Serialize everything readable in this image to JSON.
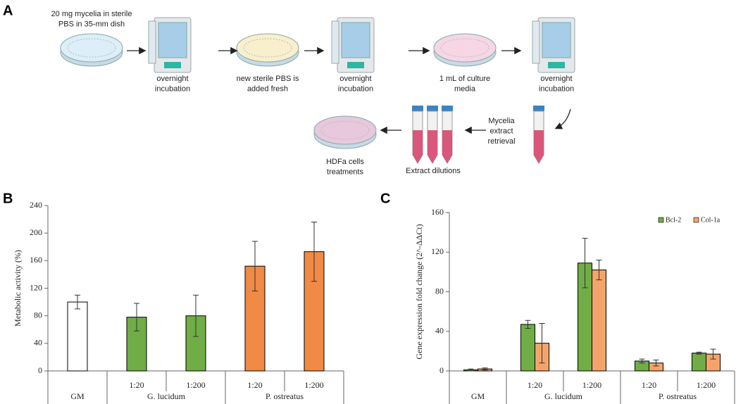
{
  "figure_a": {
    "label": "A",
    "steps": [
      [
        "20 mg mycelia in sterile",
        "PBS in 35-mm dish"
      ],
      [
        "overnight",
        "incubation"
      ],
      [
        "new sterile PBS is",
        "added fresh"
      ],
      [
        "overnight",
        "incubation"
      ],
      [
        "1 mL of culture",
        "media"
      ],
      [
        "overnight",
        "incubation"
      ],
      [
        "Mycelia",
        "extract",
        "retrieval"
      ],
      [
        "Extract dilutions"
      ],
      [
        "HDFa cells",
        "treatments"
      ]
    ]
  },
  "chart_data": [
    {
      "type": "bar",
      "label": "B",
      "ylabel": "Metabolic activity (%)",
      "ylim": [
        0,
        240
      ],
      "yticks": [
        0,
        40,
        80,
        120,
        160,
        200,
        240
      ],
      "groups": [
        {
          "label": "GM",
          "categories": [
            null
          ]
        },
        {
          "label": "G. lucidum",
          "categories": [
            "1:20",
            "1:200"
          ]
        },
        {
          "label": "P. ostreatus",
          "categories": [
            "1:20",
            "1:200"
          ]
        }
      ],
      "series": [
        {
          "values": [
            100,
            78,
            80,
            152,
            173
          ],
          "errors": [
            10,
            20,
            30,
            36,
            43
          ],
          "colors": [
            "#ffffff",
            "#70ad47",
            "#70ad47",
            "#f08a44",
            "#f08a44"
          ]
        }
      ]
    },
    {
      "type": "bar",
      "label": "C",
      "ylabel": "Gene expression fold change (2^-ΔΔCt)",
      "ylim": [
        0,
        160
      ],
      "yticks": [
        0,
        40,
        80,
        120,
        160
      ],
      "groups": [
        {
          "label": "GM",
          "categories": [
            null
          ]
        },
        {
          "label": "G. lucidum",
          "categories": [
            "1:20",
            "1:200"
          ]
        },
        {
          "label": "P. ostreatus",
          "categories": [
            "1:20",
            "1:200"
          ]
        }
      ],
      "series": [
        {
          "name": "Bcl-2",
          "color": "#70ad47",
          "values": [
            1,
            47,
            109,
            10,
            18
          ],
          "errors": [
            1,
            4,
            25,
            2,
            1
          ]
        },
        {
          "name": "Col-1a",
          "color": "#f4a46a",
          "values": [
            2,
            28,
            102,
            8,
            17
          ],
          "errors": [
            1,
            20,
            10,
            3,
            5
          ]
        }
      ]
    }
  ]
}
